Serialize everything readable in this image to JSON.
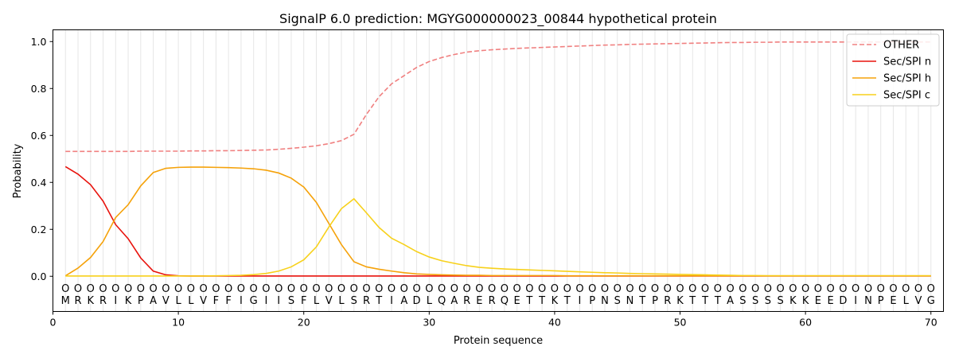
{
  "chart_data": {
    "type": "line",
    "title": "SignalP 6.0 prediction: MGYG000000023_00844 hypothetical protein",
    "xlabel": "Protein sequence",
    "ylabel": "Probability",
    "xlim": [
      0,
      71
    ],
    "ylim": [
      -0.15,
      1.05
    ],
    "xticks": [
      0,
      10,
      20,
      30,
      40,
      50,
      60,
      70
    ],
    "yticks": [
      "0.0",
      "0.2",
      "0.4",
      "0.6",
      "0.8",
      "1.0"
    ],
    "grid": "vertical lines at each residue",
    "legend_position": "top-right",
    "sequence": [
      "M",
      "R",
      "K",
      "R",
      "I",
      "K",
      "P",
      "A",
      "V",
      "L",
      "L",
      "V",
      "F",
      "F",
      "I",
      "G",
      "I",
      "I",
      "S",
      "F",
      "L",
      "V",
      "L",
      "S",
      "R",
      "T",
      "I",
      "A",
      "D",
      "L",
      "Q",
      "A",
      "R",
      "E",
      "R",
      "Q",
      "E",
      "T",
      "T",
      "K",
      "T",
      "I",
      "P",
      "N",
      "S",
      "N",
      "T",
      "P",
      "R",
      "K",
      "T",
      "T",
      "T",
      "A",
      "S",
      "S",
      "S",
      "S",
      "K",
      "K",
      "E",
      "E",
      "D",
      "I",
      "N",
      "P",
      "E",
      "L",
      "V",
      "G"
    ],
    "region_marker": "O",
    "series": [
      {
        "name": "OTHER",
        "color": "#f08080",
        "dash": true,
        "values": [
          0.532,
          0.532,
          0.532,
          0.532,
          0.532,
          0.532,
          0.533,
          0.533,
          0.533,
          0.533,
          0.534,
          0.534,
          0.535,
          0.535,
          0.536,
          0.537,
          0.538,
          0.541,
          0.545,
          0.55,
          0.556,
          0.565,
          0.578,
          0.605,
          0.69,
          0.765,
          0.82,
          0.855,
          0.89,
          0.915,
          0.932,
          0.945,
          0.955,
          0.961,
          0.965,
          0.968,
          0.971,
          0.973,
          0.975,
          0.977,
          0.979,
          0.981,
          0.983,
          0.985,
          0.986,
          0.988,
          0.989,
          0.99,
          0.991,
          0.992,
          0.993,
          0.994,
          0.995,
          0.996,
          0.996,
          0.997,
          0.997,
          0.998,
          0.998,
          0.998,
          0.998,
          0.998,
          0.998,
          0.998,
          0.998,
          0.998,
          0.998,
          0.998,
          0.998,
          0.998
        ]
      },
      {
        "name": "Sec/SPI n",
        "color": "#e8120c",
        "dash": false,
        "values": [
          0.467,
          0.435,
          0.39,
          0.32,
          0.22,
          0.16,
          0.078,
          0.022,
          0.006,
          0.002,
          0.001,
          0.001,
          0.001,
          0.001,
          0.001,
          0.001,
          0.001,
          0.001,
          0.001,
          0.001,
          0.001,
          0.001,
          0.001,
          0.001,
          0.001,
          0.001,
          0.001,
          0.001,
          0.001,
          0.001,
          0.001,
          0.001,
          0.001,
          0.001,
          0.001,
          0.001,
          0.001,
          0.001,
          0.001,
          0.001,
          0.001,
          0.001,
          0.001,
          0.001,
          0.001,
          0.001,
          0.001,
          0.001,
          0.001,
          0.001,
          0.001,
          0.001,
          0.001,
          0.001,
          0.001,
          0.001,
          0.001,
          0.001,
          0.001,
          0.001,
          0.001,
          0.001,
          0.001,
          0.001,
          0.001,
          0.001,
          0.001,
          0.001,
          0.001,
          0.001
        ]
      },
      {
        "name": "Sec/SPI h",
        "color": "#f5a20a",
        "dash": false,
        "values": [
          0.002,
          0.035,
          0.08,
          0.148,
          0.25,
          0.305,
          0.385,
          0.442,
          0.46,
          0.464,
          0.465,
          0.465,
          0.464,
          0.463,
          0.461,
          0.458,
          0.452,
          0.44,
          0.418,
          0.38,
          0.315,
          0.225,
          0.135,
          0.062,
          0.04,
          0.03,
          0.022,
          0.015,
          0.01,
          0.008,
          0.006,
          0.005,
          0.004,
          0.004,
          0.003,
          0.003,
          0.003,
          0.003,
          0.003,
          0.003,
          0.002,
          0.002,
          0.002,
          0.002,
          0.002,
          0.002,
          0.002,
          0.002,
          0.002,
          0.002,
          0.002,
          0.002,
          0.002,
          0.002,
          0.002,
          0.002,
          0.002,
          0.002,
          0.002,
          0.002,
          0.002,
          0.002,
          0.002,
          0.002,
          0.002,
          0.002,
          0.002,
          0.002,
          0.002,
          0.002
        ]
      },
      {
        "name": "Sec/SPI c",
        "color": "#f7d11b",
        "dash": false,
        "values": [
          0.001,
          0.001,
          0.001,
          0.001,
          0.001,
          0.001,
          0.001,
          0.001,
          0.001,
          0.001,
          0.001,
          0.001,
          0.002,
          0.003,
          0.004,
          0.007,
          0.012,
          0.022,
          0.04,
          0.07,
          0.125,
          0.21,
          0.288,
          0.33,
          0.27,
          0.208,
          0.162,
          0.135,
          0.105,
          0.082,
          0.066,
          0.055,
          0.045,
          0.038,
          0.034,
          0.031,
          0.029,
          0.027,
          0.025,
          0.023,
          0.021,
          0.019,
          0.017,
          0.015,
          0.014,
          0.012,
          0.011,
          0.01,
          0.009,
          0.008,
          0.007,
          0.006,
          0.005,
          0.004,
          0.003,
          0.003,
          0.002,
          0.002,
          0.002,
          0.002,
          0.002,
          0.002,
          0.002,
          0.002,
          0.002,
          0.002,
          0.002,
          0.002,
          0.002,
          0.002
        ]
      }
    ]
  }
}
